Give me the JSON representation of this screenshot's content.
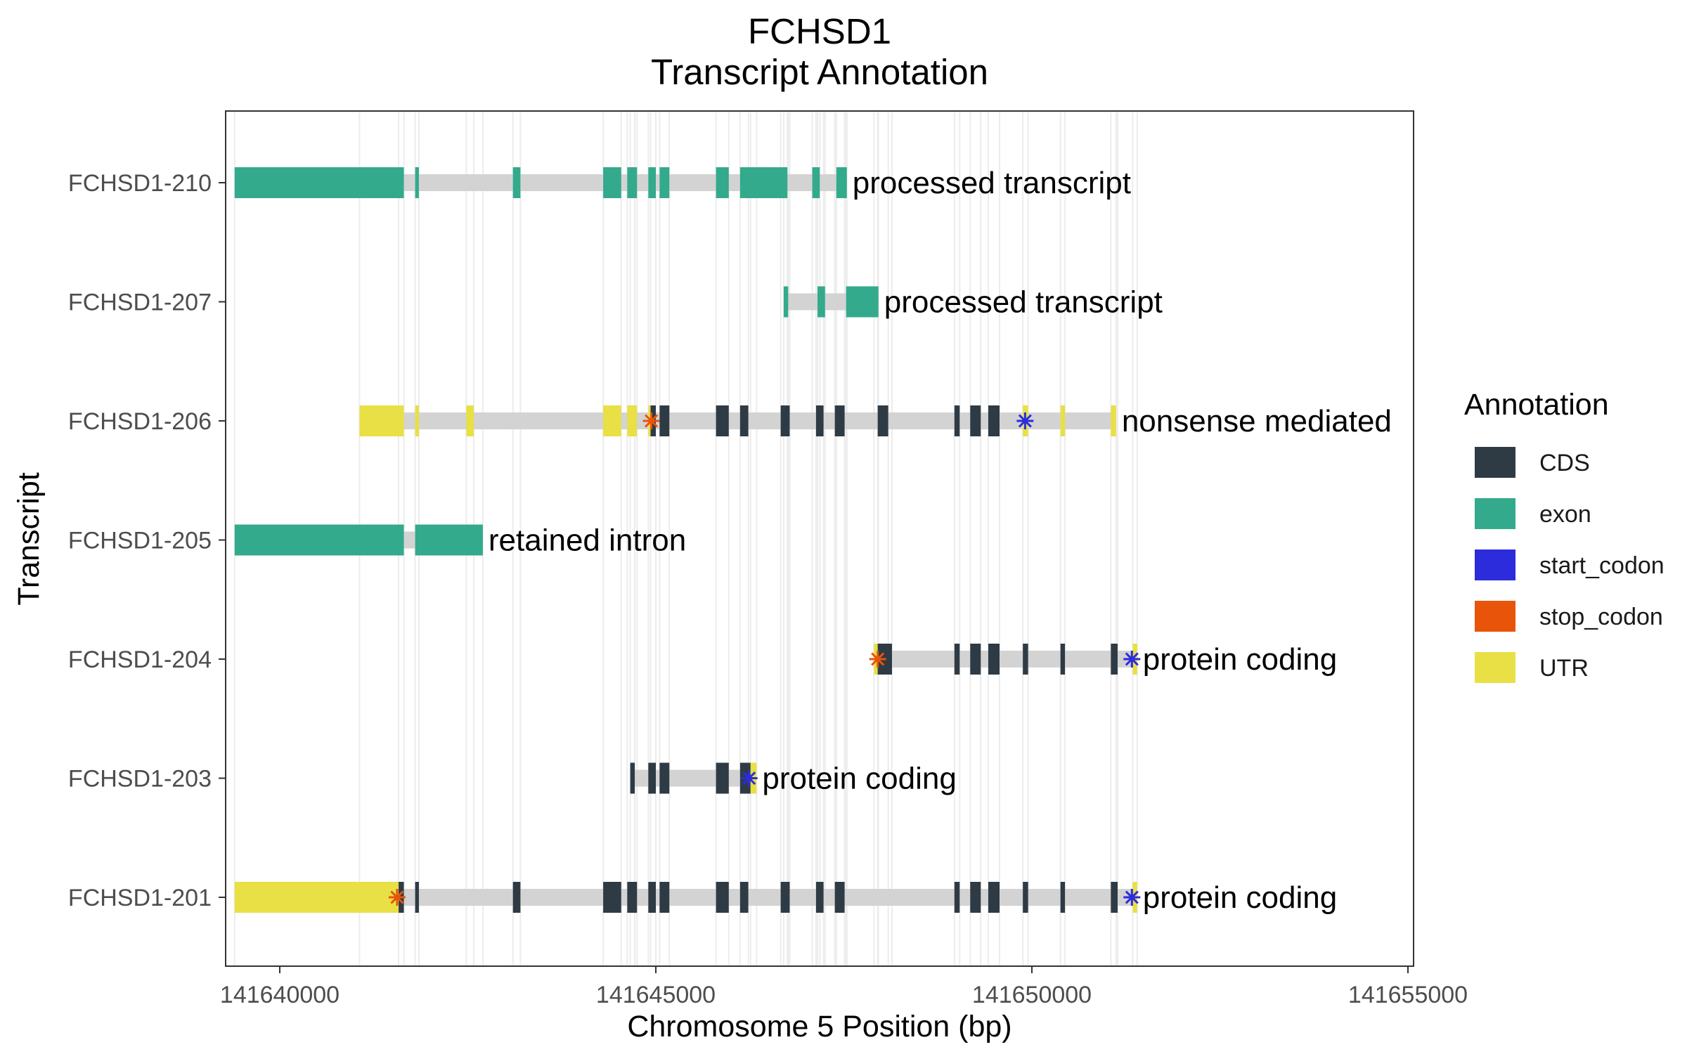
{
  "chart_data": {
    "type": "gene-track",
    "title": "FCHSD1",
    "subtitle": "Transcript Annotation",
    "xlabel": "Chromosome 5 Position (bp)",
    "ylabel": "Transcript",
    "xlim": [
      141638800,
      141655300
    ],
    "x_ticks": [
      141640000,
      141645000,
      141650000,
      141655000
    ],
    "x_tick_labels": [
      "141640000",
      "141645000",
      "141650000",
      "141655000"
    ],
    "grid": "vertical lines at feature boundaries",
    "colors": {
      "CDS": "#2e3b45",
      "exon": "#33aa8c",
      "start_codon": "#2c2cdc",
      "stop_codon": "#e8540a",
      "UTR": "#e8e045",
      "intron": "#d3d3d3"
    },
    "legend": {
      "title": "Annotation",
      "position": "right",
      "entries": [
        {
          "key": "CDS",
          "label": "CDS"
        },
        {
          "key": "exon",
          "label": "exon"
        },
        {
          "key": "start_codon",
          "label": "start_codon"
        },
        {
          "key": "stop_codon",
          "label": "stop_codon"
        },
        {
          "key": "UTR",
          "label": "UTR"
        }
      ]
    },
    "transcripts": [
      {
        "name": "FCHSD1-210",
        "biotype": "processed transcript",
        "span": [
          141639400,
          141647540
        ],
        "features": [
          {
            "type": "exon",
            "start": 141639400,
            "end": 141641650
          },
          {
            "type": "exon",
            "start": 141641800,
            "end": 141641850
          },
          {
            "type": "exon",
            "start": 141643100,
            "end": 141643200
          },
          {
            "type": "exon",
            "start": 141644300,
            "end": 141644540
          },
          {
            "type": "exon",
            "start": 141644620,
            "end": 141644750
          },
          {
            "type": "exon",
            "start": 141644900,
            "end": 141645000
          },
          {
            "type": "exon",
            "start": 141645050,
            "end": 141645180
          },
          {
            "type": "exon",
            "start": 141645800,
            "end": 141645970
          },
          {
            "type": "exon",
            "start": 141646120,
            "end": 141646750
          },
          {
            "type": "exon",
            "start": 141647080,
            "end": 141647180
          },
          {
            "type": "exon",
            "start": 141647400,
            "end": 141647540
          }
        ]
      },
      {
        "name": "FCHSD1-207",
        "biotype": "processed transcript",
        "span": [
          141646700,
          141647960
        ],
        "features": [
          {
            "type": "exon",
            "start": 141646700,
            "end": 141646760
          },
          {
            "type": "exon",
            "start": 141647150,
            "end": 141647250
          },
          {
            "type": "exon",
            "start": 141647530,
            "end": 141647960
          }
        ]
      },
      {
        "name": "FCHSD1-206",
        "biotype": "nonsense mediated",
        "span": [
          141641060,
          141651120
        ],
        "stop_codon_at": 141644940,
        "start_codon_at": 141649910,
        "features": [
          {
            "type": "UTR",
            "start": 141641060,
            "end": 141641650
          },
          {
            "type": "UTR",
            "start": 141641800,
            "end": 141641850
          },
          {
            "type": "UTR",
            "start": 141642480,
            "end": 141642580
          },
          {
            "type": "UTR",
            "start": 141644300,
            "end": 141644540
          },
          {
            "type": "UTR",
            "start": 141644620,
            "end": 141644750
          },
          {
            "type": "UTR",
            "start": 141644900,
            "end": 141644930
          },
          {
            "type": "CDS",
            "start": 141644930,
            "end": 141645000
          },
          {
            "type": "CDS",
            "start": 141645050,
            "end": 141645180
          },
          {
            "type": "CDS",
            "start": 141645800,
            "end": 141645970
          },
          {
            "type": "CDS",
            "start": 141646120,
            "end": 141646230
          },
          {
            "type": "CDS",
            "start": 141646660,
            "end": 141646780
          },
          {
            "type": "CDS",
            "start": 141647130,
            "end": 141647230
          },
          {
            "type": "CDS",
            "start": 141647380,
            "end": 141647510
          },
          {
            "type": "CDS",
            "start": 141647950,
            "end": 141648090
          },
          {
            "type": "CDS",
            "start": 141648970,
            "end": 141649040
          },
          {
            "type": "CDS",
            "start": 141649180,
            "end": 141649320
          },
          {
            "type": "CDS",
            "start": 141649420,
            "end": 141649570
          },
          {
            "type": "UTR",
            "start": 141649880,
            "end": 141649950
          },
          {
            "type": "UTR",
            "start": 141650380,
            "end": 141650440
          },
          {
            "type": "UTR",
            "start": 141651050,
            "end": 141651120
          }
        ]
      },
      {
        "name": "FCHSD1-205",
        "biotype": "retained intron",
        "span": [
          141639400,
          141642700
        ],
        "features": [
          {
            "type": "exon",
            "start": 141639400,
            "end": 141641650
          },
          {
            "type": "exon",
            "start": 141641800,
            "end": 141642700
          }
        ]
      },
      {
        "name": "FCHSD1-204",
        "biotype": "protein coding",
        "span": [
          141647900,
          141651400
        ],
        "stop_codon_at": 141647950,
        "start_codon_at": 141651330,
        "features": [
          {
            "type": "UTR",
            "start": 141647900,
            "end": 141647950
          },
          {
            "type": "CDS",
            "start": 141647950,
            "end": 141648140
          },
          {
            "type": "CDS",
            "start": 141648970,
            "end": 141649040
          },
          {
            "type": "CDS",
            "start": 141649180,
            "end": 141649320
          },
          {
            "type": "CDS",
            "start": 141649420,
            "end": 141649570
          },
          {
            "type": "CDS",
            "start": 141649880,
            "end": 141649950
          },
          {
            "type": "CDS",
            "start": 141650380,
            "end": 141650440
          },
          {
            "type": "CDS",
            "start": 141651050,
            "end": 141651140
          },
          {
            "type": "UTR",
            "start": 141651340,
            "end": 141651400
          }
        ]
      },
      {
        "name": "FCHSD1-203",
        "biotype": "protein coding",
        "span": [
          141644660,
          141646340
        ],
        "start_codon_at": 141646240,
        "features": [
          {
            "type": "CDS",
            "start": 141644660,
            "end": 141644720
          },
          {
            "type": "CDS",
            "start": 141644900,
            "end": 141645000
          },
          {
            "type": "CDS",
            "start": 141645050,
            "end": 141645180
          },
          {
            "type": "CDS",
            "start": 141645800,
            "end": 141645970
          },
          {
            "type": "CDS",
            "start": 141646120,
            "end": 141646260
          },
          {
            "type": "UTR",
            "start": 141646260,
            "end": 141646340
          }
        ]
      },
      {
        "name": "FCHSD1-201",
        "biotype": "protein coding",
        "span": [
          141639400,
          141651400
        ],
        "stop_codon_at": 141641560,
        "start_codon_at": 141651330,
        "features": [
          {
            "type": "UTR",
            "start": 141639400,
            "end": 141641580
          },
          {
            "type": "CDS",
            "start": 141641580,
            "end": 141641650
          },
          {
            "type": "CDS",
            "start": 141641800,
            "end": 141641850
          },
          {
            "type": "CDS",
            "start": 141643100,
            "end": 141643200
          },
          {
            "type": "CDS",
            "start": 141644300,
            "end": 141644540
          },
          {
            "type": "CDS",
            "start": 141644620,
            "end": 141644750
          },
          {
            "type": "CDS",
            "start": 141644900,
            "end": 141645000
          },
          {
            "type": "CDS",
            "start": 141645050,
            "end": 141645180
          },
          {
            "type": "CDS",
            "start": 141645800,
            "end": 141645970
          },
          {
            "type": "CDS",
            "start": 141646120,
            "end": 141646230
          },
          {
            "type": "CDS",
            "start": 141646660,
            "end": 141646780
          },
          {
            "type": "CDS",
            "start": 141647130,
            "end": 141647230
          },
          {
            "type": "CDS",
            "start": 141647380,
            "end": 141647510
          },
          {
            "type": "CDS",
            "start": 141648970,
            "end": 141649040
          },
          {
            "type": "CDS",
            "start": 141649180,
            "end": 141649320
          },
          {
            "type": "CDS",
            "start": 141649420,
            "end": 141649570
          },
          {
            "type": "CDS",
            "start": 141649880,
            "end": 141649950
          },
          {
            "type": "CDS",
            "start": 141650380,
            "end": 141650440
          },
          {
            "type": "CDS",
            "start": 141651050,
            "end": 141651140
          },
          {
            "type": "UTR",
            "start": 141651340,
            "end": 141651400
          }
        ]
      }
    ]
  }
}
